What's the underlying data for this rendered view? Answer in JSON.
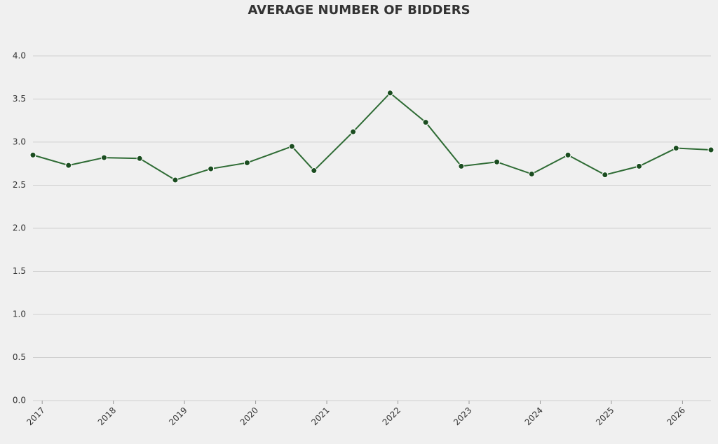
{
  "chart_data": {
    "type": "line",
    "title": "AVERAGE NUMBER OF BIDDERS",
    "x": [
      2016.87,
      2017.37,
      2017.87,
      2018.37,
      2018.87,
      2019.37,
      2019.88,
      2020.51,
      2020.82,
      2021.37,
      2021.89,
      2022.39,
      2022.89,
      2023.39,
      2023.88,
      2024.39,
      2024.91,
      2025.39,
      2025.91,
      2026.4
    ],
    "series": [
      {
        "name": "Average number of bidders",
        "color": "#2e6b34",
        "marker_color": "#1b4d20",
        "values": [
          2.85,
          2.73,
          2.82,
          2.81,
          2.56,
          2.69,
          2.76,
          2.95,
          2.67,
          3.12,
          3.57,
          3.23,
          2.72,
          2.77,
          2.63,
          2.85,
          2.62,
          2.72,
          2.93,
          2.91
        ]
      }
    ],
    "xlim": [
      2016.87,
      2026.4
    ],
    "xticks": [
      2017,
      2018,
      2019,
      2020,
      2021,
      2022,
      2023,
      2024,
      2025,
      2026
    ],
    "ylim": [
      0,
      4.3
    ],
    "yticks": [
      {
        "value": 0,
        "label": "0.0"
      },
      0.5,
      {
        "value": 1,
        "label": "1.0"
      },
      1.5,
      {
        "value": 2,
        "label": "2.0"
      },
      2.5,
      {
        "value": 3,
        "label": "3.0"
      },
      3.5,
      {
        "value": 4,
        "label": "4.0"
      }
    ],
    "grid": true
  }
}
